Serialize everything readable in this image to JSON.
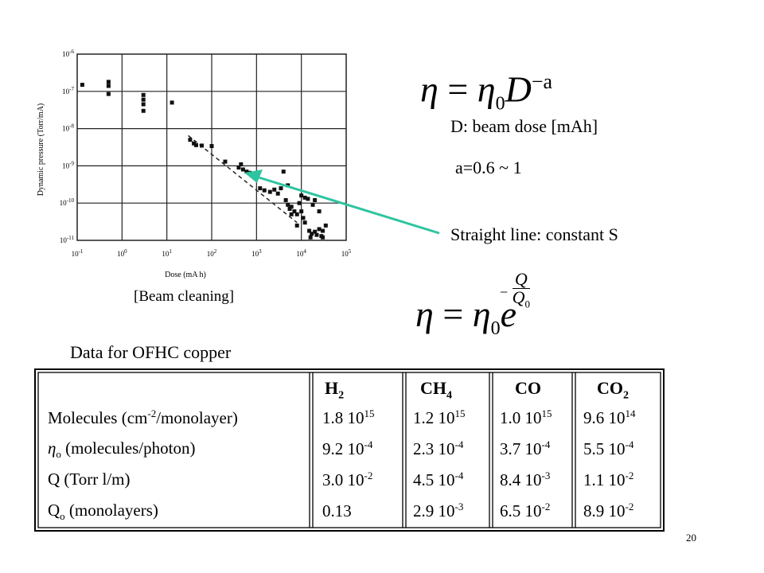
{
  "chart_data": {
    "type": "scatter",
    "xlabel": "Dose (mA h)",
    "ylabel": "Dynamic pressure (Torr/mA)",
    "x_scale": "log",
    "y_scale": "log",
    "xlim": [
      0.1,
      100000
    ],
    "ylim": [
      1e-11,
      1e-06
    ],
    "x_ticks": [
      "10-1",
      "100",
      "101",
      "102",
      "103",
      "104",
      "105"
    ],
    "y_ticks": [
      "10-6",
      "10-7",
      "10-8",
      "10-9",
      "10-10",
      "10-11"
    ],
    "grid": true,
    "series": [
      {
        "points": [
          [
            0.13,
            1.5e-07
          ],
          [
            0.5,
            1.8e-07
          ],
          [
            0.5,
            1.4e-07
          ],
          [
            0.5,
            8.5e-08
          ],
          [
            3,
            8e-08
          ],
          [
            3,
            4.5e-08
          ],
          [
            3,
            3e-08
          ],
          [
            3,
            6e-08
          ],
          [
            13,
            5e-08
          ],
          [
            33,
            5e-09
          ],
          [
            40,
            4e-09
          ],
          [
            45,
            3.6e-09
          ],
          [
            60,
            3.5e-09
          ],
          [
            100,
            3.4e-09
          ],
          [
            200,
            1.3e-09
          ],
          [
            400,
            9e-10
          ],
          [
            450,
            1.1e-09
          ],
          [
            500,
            8e-10
          ],
          [
            600,
            7e-10
          ],
          [
            700,
            6.5e-10
          ],
          [
            800,
            6e-10
          ],
          [
            1000,
            5.5e-10
          ],
          [
            1200,
            2.5e-10
          ],
          [
            1500,
            2.2e-10
          ],
          [
            2000,
            2e-10
          ],
          [
            2500,
            2.3e-10
          ],
          [
            3000,
            1.8e-10
          ],
          [
            3500,
            2.5e-10
          ],
          [
            4000,
            7e-10
          ],
          [
            4500,
            1.2e-10
          ],
          [
            5000,
            9e-11
          ],
          [
            5500,
            7e-11
          ],
          [
            6000,
            8e-11
          ],
          [
            7000,
            6e-11
          ],
          [
            8000,
            5e-11
          ],
          [
            5000,
            3e-10
          ],
          [
            9000,
            1e-10
          ],
          [
            10000,
            6e-11
          ],
          [
            11000,
            4e-11
          ],
          [
            12000,
            3e-11
          ],
          [
            8000,
            2.5e-11
          ],
          [
            15000,
            1.8e-11
          ],
          [
            17000,
            1.5e-11
          ],
          [
            20000,
            1.7e-11
          ],
          [
            22000,
            1.4e-11
          ],
          [
            25000,
            2e-11
          ],
          [
            14000,
            1.3e-10
          ],
          [
            18000,
            9e-11
          ],
          [
            25000,
            6e-11
          ],
          [
            30000,
            1.8e-11
          ],
          [
            35000,
            2.5e-11
          ],
          [
            16000,
            1.2e-11
          ],
          [
            28000,
            1.3e-11
          ],
          [
            10000,
            1.6e-10
          ],
          [
            12000,
            1.4e-10
          ],
          [
            20000,
            1.2e-10
          ],
          [
            6000,
            5e-11
          ],
          [
            30000,
            1.2e-11
          ]
        ]
      }
    ],
    "fit_line": {
      "style": "dashed",
      "from": [
        30,
        6.5e-09
      ],
      "to": [
        8000,
        3e-11
      ]
    }
  },
  "labels": {
    "beam_cleaning": "[Beam cleaning]",
    "beam_dose": "D: beam dose [mAh]",
    "exponent_range": "a=0.6 ~ 1",
    "straight_line": "Straight line: constant S",
    "data_title": "Data for OFHC copper",
    "page_number": "20"
  },
  "equations": {
    "eq1": {
      "lhs": "η",
      "eq": "=",
      "base": "η",
      "sub": "0",
      "var": "D",
      "sup": "−a"
    },
    "eq2": {
      "lhs": "η",
      "eq": "=",
      "base": "η",
      "sub": "0",
      "var": "e",
      "sup_minus": "−",
      "sup_num": "Q",
      "sup_den": "Q",
      "sup_den_sub": "0"
    }
  },
  "table": {
    "headers": [
      {
        "base": "H",
        "sub": "2"
      },
      {
        "base": "CH",
        "sub": "4"
      },
      {
        "base": "CO",
        "sub": ""
      },
      {
        "base": "CO",
        "sub": "2"
      }
    ],
    "rows": [
      {
        "label": {
          "pre": "Molecules (cm",
          "sup": "-2",
          "post": "/monolayer)",
          "sym": "",
          "sym_sub": ""
        },
        "cells": [
          {
            "m": "1.8 10",
            "e": "15"
          },
          {
            "m": "1.2 10",
            "e": "15"
          },
          {
            "m": "1.0 10",
            "e": "15"
          },
          {
            "m": "9.6 10",
            "e": "14"
          }
        ]
      },
      {
        "label": {
          "pre": "",
          "sup": "",
          "post": " (molecules/photon)",
          "sym": "η",
          "sym_sub": "o"
        },
        "cells": [
          {
            "m": "9.2 10",
            "e": "-4"
          },
          {
            "m": "2.3 10",
            "e": "-4"
          },
          {
            "m": "3.7 10",
            "e": "-4"
          },
          {
            "m": "5.5 10",
            "e": "-4"
          }
        ]
      },
      {
        "label": {
          "pre": "Q (Torr l/m)",
          "sup": "",
          "post": "",
          "sym": "",
          "sym_sub": ""
        },
        "cells": [
          {
            "m": "3.0 10",
            "e": "-2"
          },
          {
            "m": "4.5 10",
            "e": "-4"
          },
          {
            "m": "8.4 10",
            "e": "-3"
          },
          {
            "m": "1.1 10",
            "e": "-2"
          }
        ]
      },
      {
        "label": {
          "pre": "",
          "sup": "",
          "post": " (monolayers)",
          "sym": "Q",
          "sym_sub": "o"
        },
        "cells": [
          {
            "m": "0.13",
            "e": ""
          },
          {
            "m": "2.9 10",
            "e": "-3"
          },
          {
            "m": "6.5 10",
            "e": "-2"
          },
          {
            "m": "8.9 10",
            "e": "-2"
          }
        ]
      }
    ]
  },
  "colors": {
    "arrow": "#2ec4a0",
    "text": "#000000",
    "grid": "#222222"
  }
}
